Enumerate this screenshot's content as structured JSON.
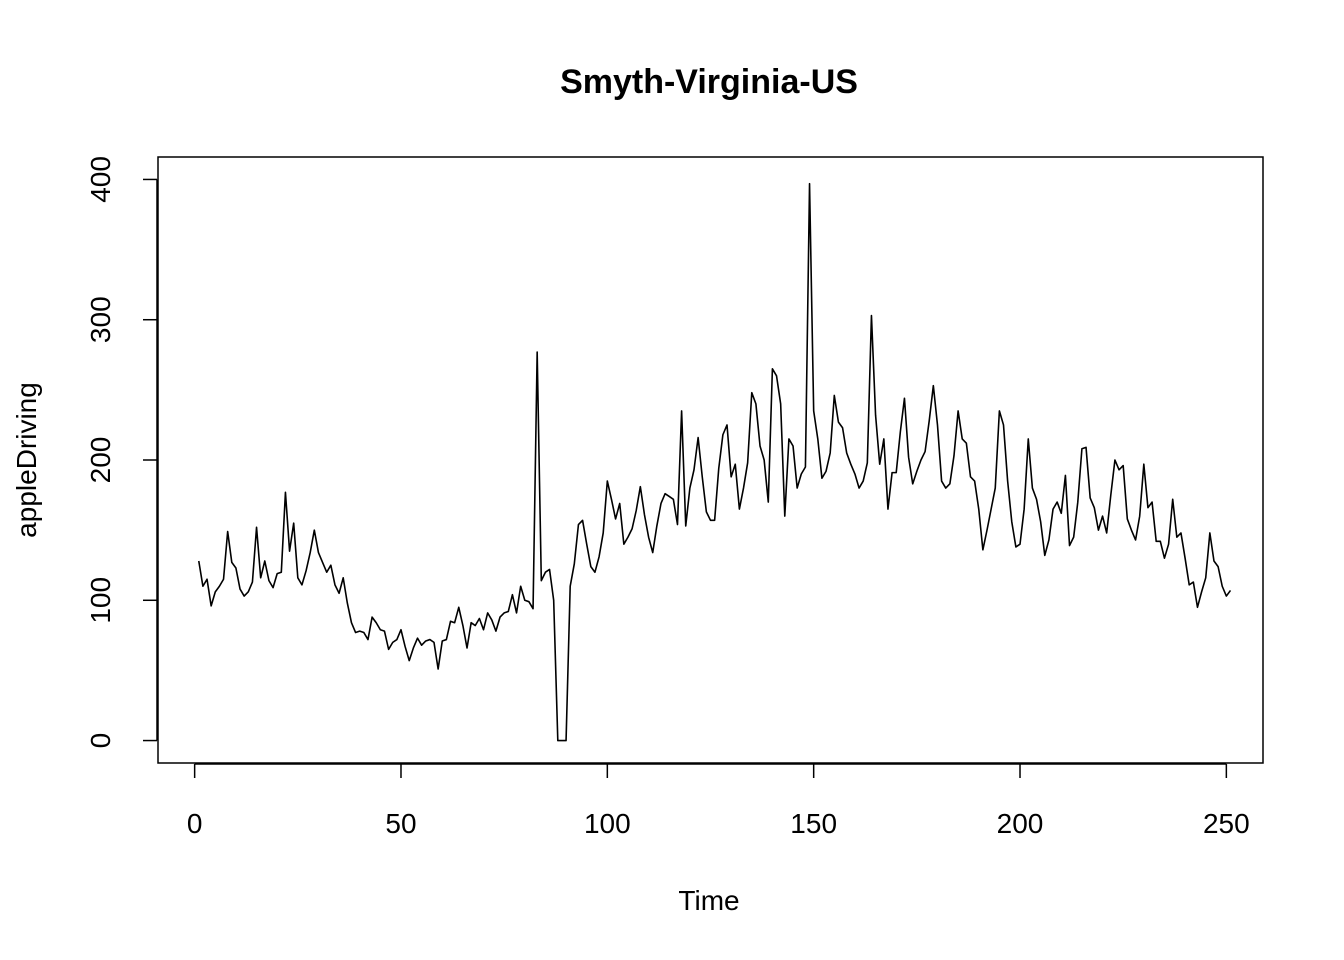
{
  "chart_data": {
    "type": "line",
    "title": "Smyth-Virginia-US",
    "xlabel": "Time",
    "ylabel": "appleDriving",
    "xlim": [
      -8.88,
      258.88
    ],
    "ylim": [
      -16,
      416
    ],
    "x_ticks": [
      0,
      50,
      100,
      150,
      200,
      250
    ],
    "y_ticks": [
      0,
      100,
      200,
      300,
      400
    ],
    "x_tick_labels": [
      "0",
      "50",
      "100",
      "150",
      "200",
      "250"
    ],
    "y_tick_labels": [
      "0",
      "100",
      "200",
      "300",
      "400"
    ],
    "grid": false,
    "series": [
      {
        "name": "appleDriving",
        "x_start": 1,
        "values": [
          128,
          110,
          115,
          96,
          106,
          110,
          115,
          149,
          127,
          123,
          108,
          103,
          106,
          113,
          152,
          116,
          128,
          114,
          109,
          119,
          120,
          177,
          135,
          155,
          116,
          111,
          121,
          134,
          150,
          134,
          127,
          120,
          125,
          111,
          105,
          116,
          98,
          84,
          77,
          78,
          77,
          72,
          88,
          84,
          79,
          78,
          65,
          70,
          72,
          79,
          67,
          57,
          66,
          73,
          68,
          71,
          72,
          70,
          51,
          71,
          72,
          85,
          84,
          95,
          82,
          66,
          84,
          82,
          87,
          79,
          91,
          86,
          78,
          88,
          91,
          92,
          104,
          91,
          110,
          100,
          99,
          94,
          277,
          114,
          120,
          122,
          100,
          0,
          0,
          0,
          110,
          126,
          154,
          157,
          140,
          124,
          120,
          131,
          148,
          185,
          172,
          158,
          169,
          140,
          145,
          151,
          164,
          181,
          161,
          145,
          134,
          153,
          169,
          176,
          174,
          172,
          154,
          235,
          153,
          180,
          193,
          216,
          188,
          163,
          157,
          157,
          194,
          218,
          225,
          188,
          197,
          165,
          180,
          198,
          248,
          240,
          210,
          200,
          170,
          265,
          260,
          240,
          160,
          215,
          210,
          180,
          190,
          195,
          397,
          235,
          215,
          187,
          192,
          205,
          246,
          227,
          223,
          205,
          197,
          190,
          180,
          185,
          198,
          303,
          232,
          197,
          215,
          165,
          191,
          191,
          220,
          244,
          202,
          183,
          192,
          200,
          206,
          228,
          253,
          225,
          185,
          180,
          183,
          203,
          235,
          215,
          212,
          188,
          185,
          165,
          136,
          150,
          165,
          180,
          235,
          225,
          185,
          156,
          138,
          140,
          165,
          215,
          180,
          172,
          156,
          132,
          143,
          165,
          170,
          162,
          189,
          139,
          145,
          170,
          208,
          209,
          173,
          166,
          150,
          160,
          148,
          175,
          200,
          193,
          196,
          158,
          150,
          143,
          160,
          197,
          166,
          170,
          142,
          142,
          130,
          140,
          172,
          145,
          148,
          130,
          111,
          113,
          95,
          106,
          116,
          148,
          128,
          124,
          110,
          103,
          107
        ]
      }
    ]
  }
}
